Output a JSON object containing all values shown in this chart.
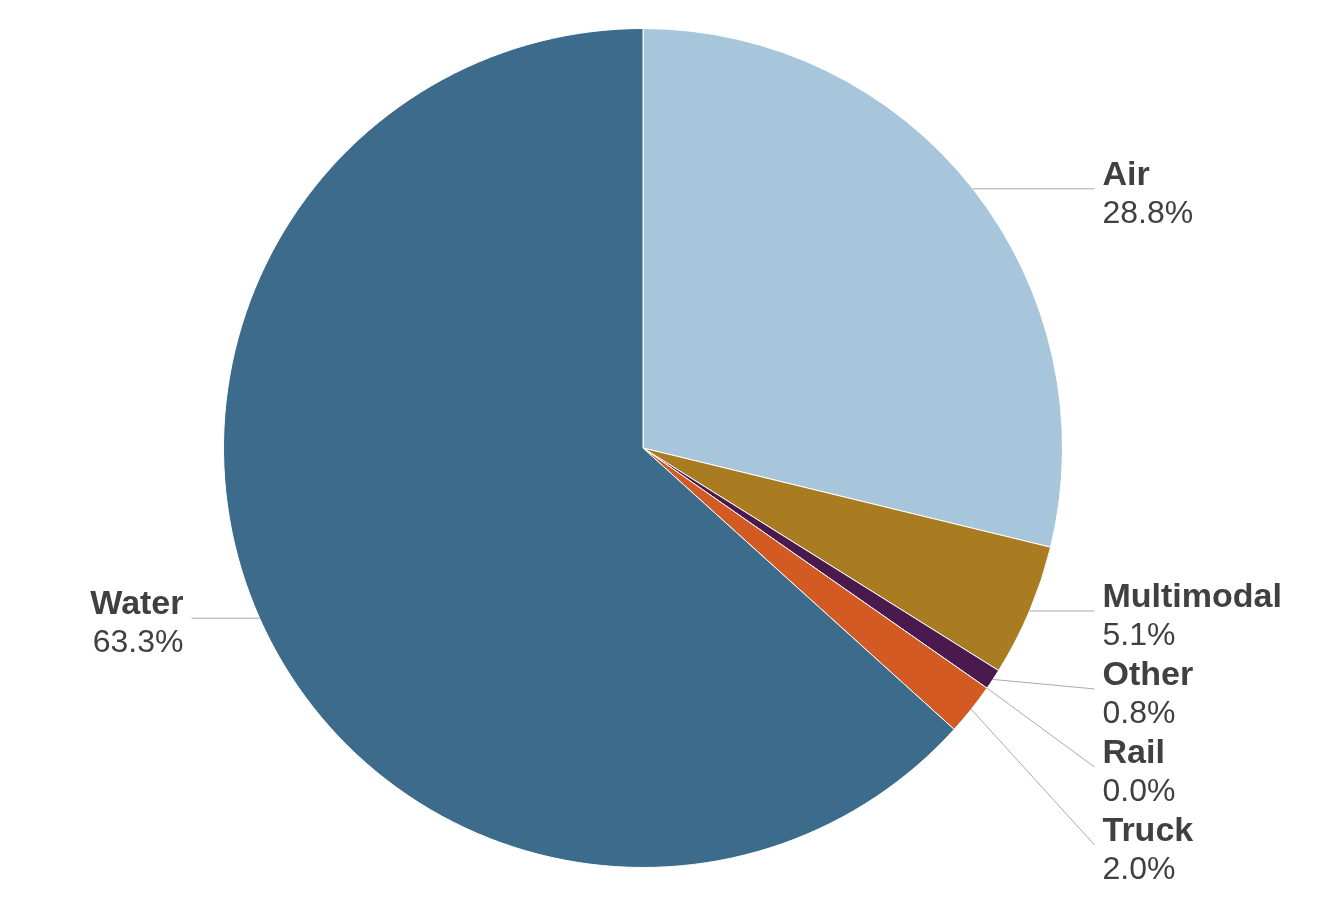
{
  "chart_data": {
    "type": "pie",
    "categories": [
      "Air",
      "Multimodal",
      "Other",
      "Rail",
      "Truck",
      "Water"
    ],
    "values": [
      28.8,
      5.1,
      0.8,
      0.0,
      2.0,
      63.3
    ],
    "colors": [
      "#a7c6db",
      "#a97c22",
      "#4a1a4f",
      "#7a7a7a",
      "#d35a22",
      "#3d6b8c"
    ],
    "value_labels": [
      "28.8%",
      "5.1%",
      "0.8%",
      "0.0%",
      "2.0%",
      "63.3%"
    ]
  }
}
